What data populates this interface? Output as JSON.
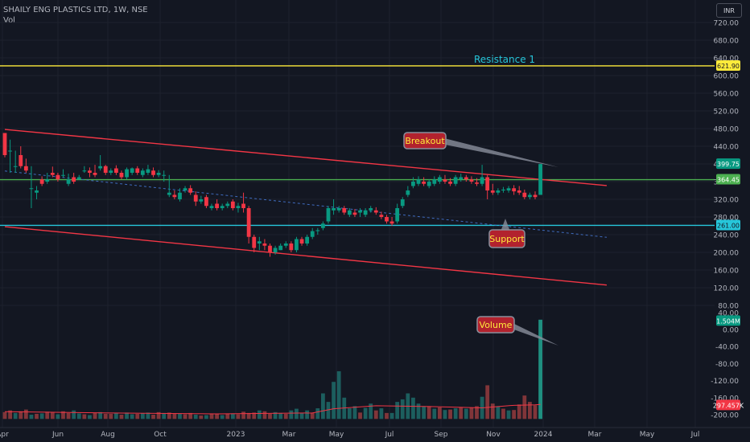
{
  "header": {
    "symbol_line": "SHAILY ENG PLASTICS LTD, 1W, NSE",
    "vol_label": "Vol"
  },
  "currency_button": "INR",
  "chart_data": {
    "type": "candlestick",
    "price_axis": {
      "ticks": [
        720,
        680,
        640,
        600,
        560,
        520,
        480,
        440,
        400,
        360,
        320,
        280,
        240,
        200,
        160,
        120,
        80
      ]
    },
    "volume_axis": {
      "ticks": [
        "40.00",
        "0.00",
        "-40.00",
        "-80.00",
        "-120.00",
        "-160.00",
        "-200.00"
      ]
    },
    "x_axis": {
      "ticks": [
        "Apr",
        "Jun",
        "Aug",
        "Oct",
        "2023",
        "Mar",
        "May",
        "Jul",
        "Sep",
        "Nov",
        "2024",
        "Mar",
        "May",
        "Jul"
      ]
    },
    "horizontal_levels": [
      {
        "price": 621.9,
        "label": "621.90",
        "color": "#ffeb3b",
        "name": "Resistance 1"
      },
      {
        "price": 364.45,
        "label": "364.45",
        "color": "#4caf50"
      },
      {
        "price": 261.0,
        "label": "261.00",
        "color": "#26c6da"
      }
    ],
    "price_badges": [
      {
        "price": 399.75,
        "label": "399.75",
        "color": "#089981"
      }
    ],
    "volume_badges": [
      {
        "label": "1.504M",
        "color": "#089981",
        "value": 20
      },
      {
        "label": "297.457K",
        "color": "#f23645",
        "value": -178
      }
    ],
    "trendlines": [
      {
        "color": "#f23645",
        "from": [
          0,
          478
        ],
        "to": [
          113.5,
          351
        ],
        "style": "solid"
      },
      {
        "color": "#f23645",
        "from": [
          0,
          258
        ],
        "to": [
          113.5,
          126
        ],
        "style": "solid"
      },
      {
        "color": "#2962ff",
        "from": [
          0,
          384
        ],
        "to": [
          113.5,
          234
        ],
        "style": "dashed"
      }
    ],
    "annotations": [
      {
        "text": "Breakout",
        "color": "#b2222e"
      },
      {
        "text": "Support",
        "color": "#b2222e"
      },
      {
        "text": "Volume",
        "color": "#b2222e"
      }
    ],
    "candles": [
      [
        470,
        470,
        420,
        415
      ],
      [
        430,
        455,
        430,
        380
      ],
      [
        395,
        430,
        395,
        380
      ],
      [
        420,
        440,
        395,
        390
      ],
      [
        395,
        412,
        385,
        380
      ],
      [
        345,
        395,
        345,
        300
      ],
      [
        335,
        350,
        340,
        320
      ],
      [
        365,
        372,
        355,
        350
      ],
      [
        360,
        380,
        365,
        355
      ],
      [
        380,
        394,
        375,
        370
      ],
      [
        375,
        380,
        365,
        360
      ],
      [
        375,
        388,
        375,
        370
      ],
      [
        355,
        378,
        365,
        350
      ],
      [
        370,
        380,
        360,
        355
      ],
      [
        365,
        375,
        370,
        365
      ],
      [
        385,
        395,
        385,
        380
      ],
      [
        385,
        392,
        380,
        370
      ],
      [
        380,
        398,
        375,
        370
      ],
      [
        390,
        420,
        395,
        385
      ],
      [
        395,
        398,
        380,
        375
      ],
      [
        380,
        390,
        385,
        375
      ],
      [
        390,
        397,
        380,
        375
      ],
      [
        380,
        385,
        370,
        365
      ],
      [
        370,
        392,
        388,
        365
      ],
      [
        380,
        392,
        390,
        375
      ],
      [
        390,
        395,
        380,
        375
      ],
      [
        375,
        390,
        385,
        370
      ],
      [
        380,
        398,
        388,
        375
      ],
      [
        385,
        392,
        375,
        370
      ],
      [
        375,
        386,
        380,
        370
      ],
      [
        375,
        385,
        375,
        360
      ],
      [
        330,
        375,
        335,
        325
      ],
      [
        330,
        340,
        325,
        320
      ],
      [
        320,
        345,
        335,
        315
      ],
      [
        340,
        350,
        345,
        335
      ],
      [
        345,
        352,
        335,
        330
      ],
      [
        330,
        338,
        315,
        305
      ],
      [
        315,
        328,
        320,
        310
      ],
      [
        325,
        330,
        305,
        300
      ],
      [
        300,
        310,
        305,
        295
      ],
      [
        310,
        320,
        300,
        295
      ],
      [
        300,
        310,
        305,
        295
      ],
      [
        305,
        315,
        310,
        300
      ],
      [
        315,
        320,
        300,
        295
      ],
      [
        300,
        312,
        305,
        290
      ],
      [
        310,
        335,
        300,
        290
      ],
      [
        300,
        305,
        235,
        220
      ],
      [
        235,
        240,
        210,
        200
      ],
      [
        220,
        235,
        225,
        205
      ],
      [
        220,
        230,
        215,
        205
      ],
      [
        215,
        220,
        200,
        190
      ],
      [
        200,
        215,
        210,
        195
      ],
      [
        205,
        220,
        215,
        205
      ],
      [
        215,
        225,
        220,
        210
      ],
      [
        220,
        225,
        205,
        200
      ],
      [
        205,
        235,
        230,
        200
      ],
      [
        230,
        235,
        220,
        215
      ],
      [
        220,
        240,
        235,
        215
      ],
      [
        235,
        255,
        248,
        230
      ],
      [
        248,
        255,
        250,
        240
      ],
      [
        255,
        270,
        265,
        250
      ],
      [
        270,
        305,
        300,
        265
      ],
      [
        295,
        320,
        300,
        285
      ],
      [
        295,
        305,
        300,
        290
      ],
      [
        300,
        305,
        290,
        285
      ],
      [
        285,
        300,
        295,
        280
      ],
      [
        290,
        298,
        285,
        280
      ],
      [
        290,
        300,
        295,
        280
      ],
      [
        285,
        300,
        295,
        280
      ],
      [
        295,
        305,
        300,
        290
      ],
      [
        295,
        302,
        290,
        285
      ],
      [
        285,
        292,
        280,
        275
      ],
      [
        280,
        285,
        270,
        265
      ],
      [
        270,
        280,
        265,
        260
      ],
      [
        270,
        310,
        300,
        265
      ],
      [
        305,
        325,
        320,
        300
      ],
      [
        330,
        350,
        340,
        325
      ],
      [
        350,
        370,
        360,
        345
      ],
      [
        355,
        372,
        365,
        350
      ],
      [
        360,
        370,
        355,
        350
      ],
      [
        350,
        365,
        360,
        345
      ],
      [
        355,
        372,
        365,
        350
      ],
      [
        360,
        375,
        370,
        355
      ],
      [
        365,
        375,
        360,
        355
      ],
      [
        360,
        368,
        355,
        350
      ],
      [
        355,
        375,
        370,
        350
      ],
      [
        365,
        378,
        370,
        360
      ],
      [
        370,
        375,
        365,
        360
      ],
      [
        365,
        372,
        360,
        355
      ],
      [
        358,
        368,
        355,
        350
      ],
      [
        355,
        398,
        370,
        350
      ],
      [
        370,
        375,
        340,
        320
      ],
      [
        340,
        355,
        335,
        330
      ],
      [
        335,
        345,
        340,
        330
      ],
      [
        340,
        348,
        342,
        335
      ],
      [
        340,
        350,
        345,
        335
      ],
      [
        345,
        352,
        338,
        330
      ],
      [
        340,
        350,
        335,
        330
      ],
      [
        335,
        342,
        325,
        320
      ],
      [
        325,
        335,
        330,
        320
      ],
      [
        330,
        338,
        325,
        320
      ],
      [
        330,
        400,
        399.75,
        330
      ]
    ],
    "volume": [
      [
        -194,
        0
      ],
      [
        -190,
        0
      ],
      [
        -196,
        1
      ],
      [
        -192,
        0
      ],
      [
        -188,
        0
      ],
      [
        -200,
        1
      ],
      [
        -198,
        0
      ],
      [
        -197,
        1
      ],
      [
        -193,
        0
      ],
      [
        -195,
        0
      ],
      [
        -199,
        1
      ],
      [
        -192,
        0
      ],
      [
        -196,
        0
      ],
      [
        -190,
        1
      ],
      [
        -197,
        1
      ],
      [
        -199,
        0
      ],
      [
        -201,
        1
      ],
      [
        -196,
        0
      ],
      [
        -194,
        1
      ],
      [
        -198,
        0
      ],
      [
        -198,
        0
      ],
      [
        -196,
        1
      ],
      [
        -200,
        0
      ],
      [
        -195,
        1
      ],
      [
        -199,
        1
      ],
      [
        -198,
        0
      ],
      [
        -197,
        1
      ],
      [
        -195,
        1
      ],
      [
        -200,
        0
      ],
      [
        -194,
        0
      ],
      [
        -196,
        1
      ],
      [
        -195,
        0
      ],
      [
        -198,
        0
      ],
      [
        -197,
        1
      ],
      [
        -199,
        0
      ],
      [
        -196,
        0
      ],
      [
        -200,
        1
      ],
      [
        -202,
        0
      ],
      [
        -201,
        1
      ],
      [
        -198,
        0
      ],
      [
        -199,
        0
      ],
      [
        -201,
        1
      ],
      [
        -198,
        0
      ],
      [
        -197,
        1
      ],
      [
        -199,
        0
      ],
      [
        -193,
        0
      ],
      [
        -196,
        0
      ],
      [
        -195,
        0
      ],
      [
        -190,
        1
      ],
      [
        -192,
        0
      ],
      [
        -198,
        0
      ],
      [
        -194,
        1
      ],
      [
        -196,
        1
      ],
      [
        -198,
        0
      ],
      [
        -190,
        1
      ],
      [
        -186,
        1
      ],
      [
        -196,
        1
      ],
      [
        -190,
        1
      ],
      [
        -195,
        0
      ],
      [
        -185,
        1
      ],
      [
        -150,
        1
      ],
      [
        -170,
        1
      ],
      [
        -123,
        1
      ],
      [
        -98,
        1
      ],
      [
        -160,
        1
      ],
      [
        -185,
        1
      ],
      [
        -180,
        1
      ],
      [
        -195,
        0
      ],
      [
        -184,
        1
      ],
      [
        -174,
        1
      ],
      [
        -190,
        0
      ],
      [
        -185,
        1
      ],
      [
        -196,
        0
      ],
      [
        -196,
        1
      ],
      [
        -170,
        1
      ],
      [
        -164,
        1
      ],
      [
        -150,
        1
      ],
      [
        -160,
        1
      ],
      [
        -174,
        1
      ],
      [
        -180,
        1
      ],
      [
        -180,
        0
      ],
      [
        -186,
        1
      ],
      [
        -183,
        0
      ],
      [
        -189,
        1
      ],
      [
        -188,
        0
      ],
      [
        -185,
        1
      ],
      [
        -182,
        0
      ],
      [
        -186,
        1
      ],
      [
        -183,
        0
      ],
      [
        -180,
        0
      ],
      [
        -158,
        1
      ],
      [
        -131,
        0
      ],
      [
        -174,
        0
      ],
      [
        -180,
        1
      ],
      [
        -186,
        0
      ],
      [
        -190,
        1
      ],
      [
        -189,
        0
      ],
      [
        -176,
        0
      ],
      [
        -155,
        0
      ],
      [
        -170,
        0
      ],
      [
        -178,
        0
      ],
      [
        23,
        1
      ]
    ],
    "volume_ma": [
      [
        0,
        -193
      ],
      [
        20,
        -196
      ],
      [
        40,
        -198
      ],
      [
        58,
        -196
      ],
      [
        62,
        -186
      ],
      [
        70,
        -179
      ],
      [
        80,
        -181
      ],
      [
        90,
        -184
      ],
      [
        96,
        -178
      ],
      [
        100,
        -177
      ],
      [
        101,
        -176
      ]
    ]
  }
}
